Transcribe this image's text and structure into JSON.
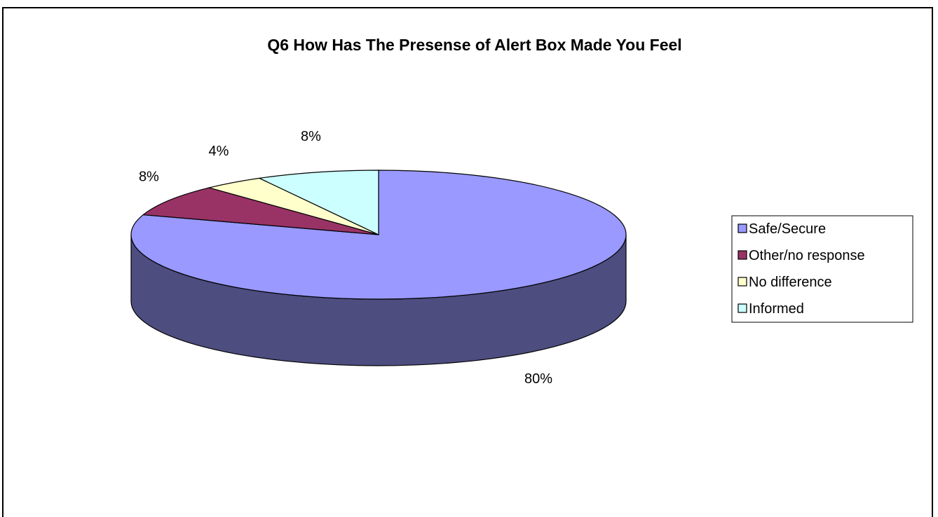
{
  "chart_data": {
    "type": "pie",
    "title": "Q6 How Has The Presense of Alert Box Made You Feel",
    "slices": [
      {
        "label": "Safe/Secure",
        "value": 80,
        "data_label": "80%",
        "color": "#9999FF",
        "side_color": "#4D4D80"
      },
      {
        "label": "Other/no response",
        "value": 8,
        "data_label": "8%",
        "color": "#993366",
        "side_color": "#4D1A33"
      },
      {
        "label": "No difference",
        "value": 4,
        "data_label": "4%",
        "color": "#FFFFCC",
        "side_color": "#808066"
      },
      {
        "label": "Informed",
        "value": 8,
        "data_label": "8%",
        "color": "#CCFFFF",
        "side_color": "#668080"
      }
    ],
    "legend_position": "right",
    "three_d": true
  }
}
